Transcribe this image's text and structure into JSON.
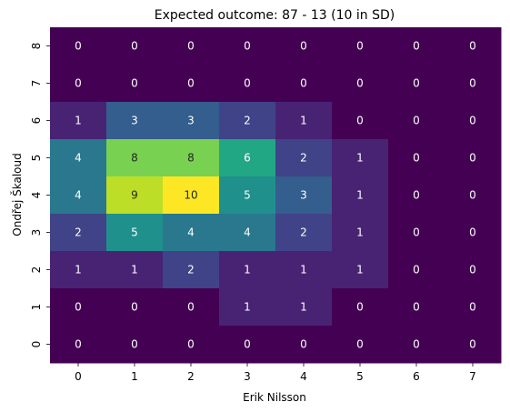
{
  "chart_data": {
    "type": "heatmap",
    "title": "Expected outcome: 87 - 13 (10 in SD)",
    "xlabel": "Erik Nilsson",
    "ylabel": "Ondřej Škaloud",
    "x": [
      "0",
      "1",
      "2",
      "3",
      "4",
      "5",
      "6",
      "7"
    ],
    "y": [
      "8",
      "7",
      "6",
      "5",
      "4",
      "3",
      "2",
      "1",
      "0"
    ],
    "values": [
      [
        0,
        0,
        0,
        0,
        0,
        0,
        0,
        0
      ],
      [
        0,
        0,
        0,
        0,
        0,
        0,
        0,
        0
      ],
      [
        1,
        3,
        3,
        2,
        1,
        0,
        0,
        0
      ],
      [
        4,
        8,
        8,
        6,
        2,
        1,
        0,
        0
      ],
      [
        4,
        9,
        10,
        5,
        3,
        1,
        0,
        0
      ],
      [
        2,
        5,
        4,
        4,
        2,
        1,
        0,
        0
      ],
      [
        1,
        1,
        2,
        1,
        1,
        1,
        0,
        0
      ],
      [
        0,
        0,
        0,
        1,
        1,
        0,
        0,
        0
      ],
      [
        0,
        0,
        0,
        0,
        0,
        0,
        0,
        0
      ]
    ],
    "colormap": "viridis",
    "vmin": 0,
    "vmax": 10,
    "colorbar": false,
    "grid": false
  }
}
